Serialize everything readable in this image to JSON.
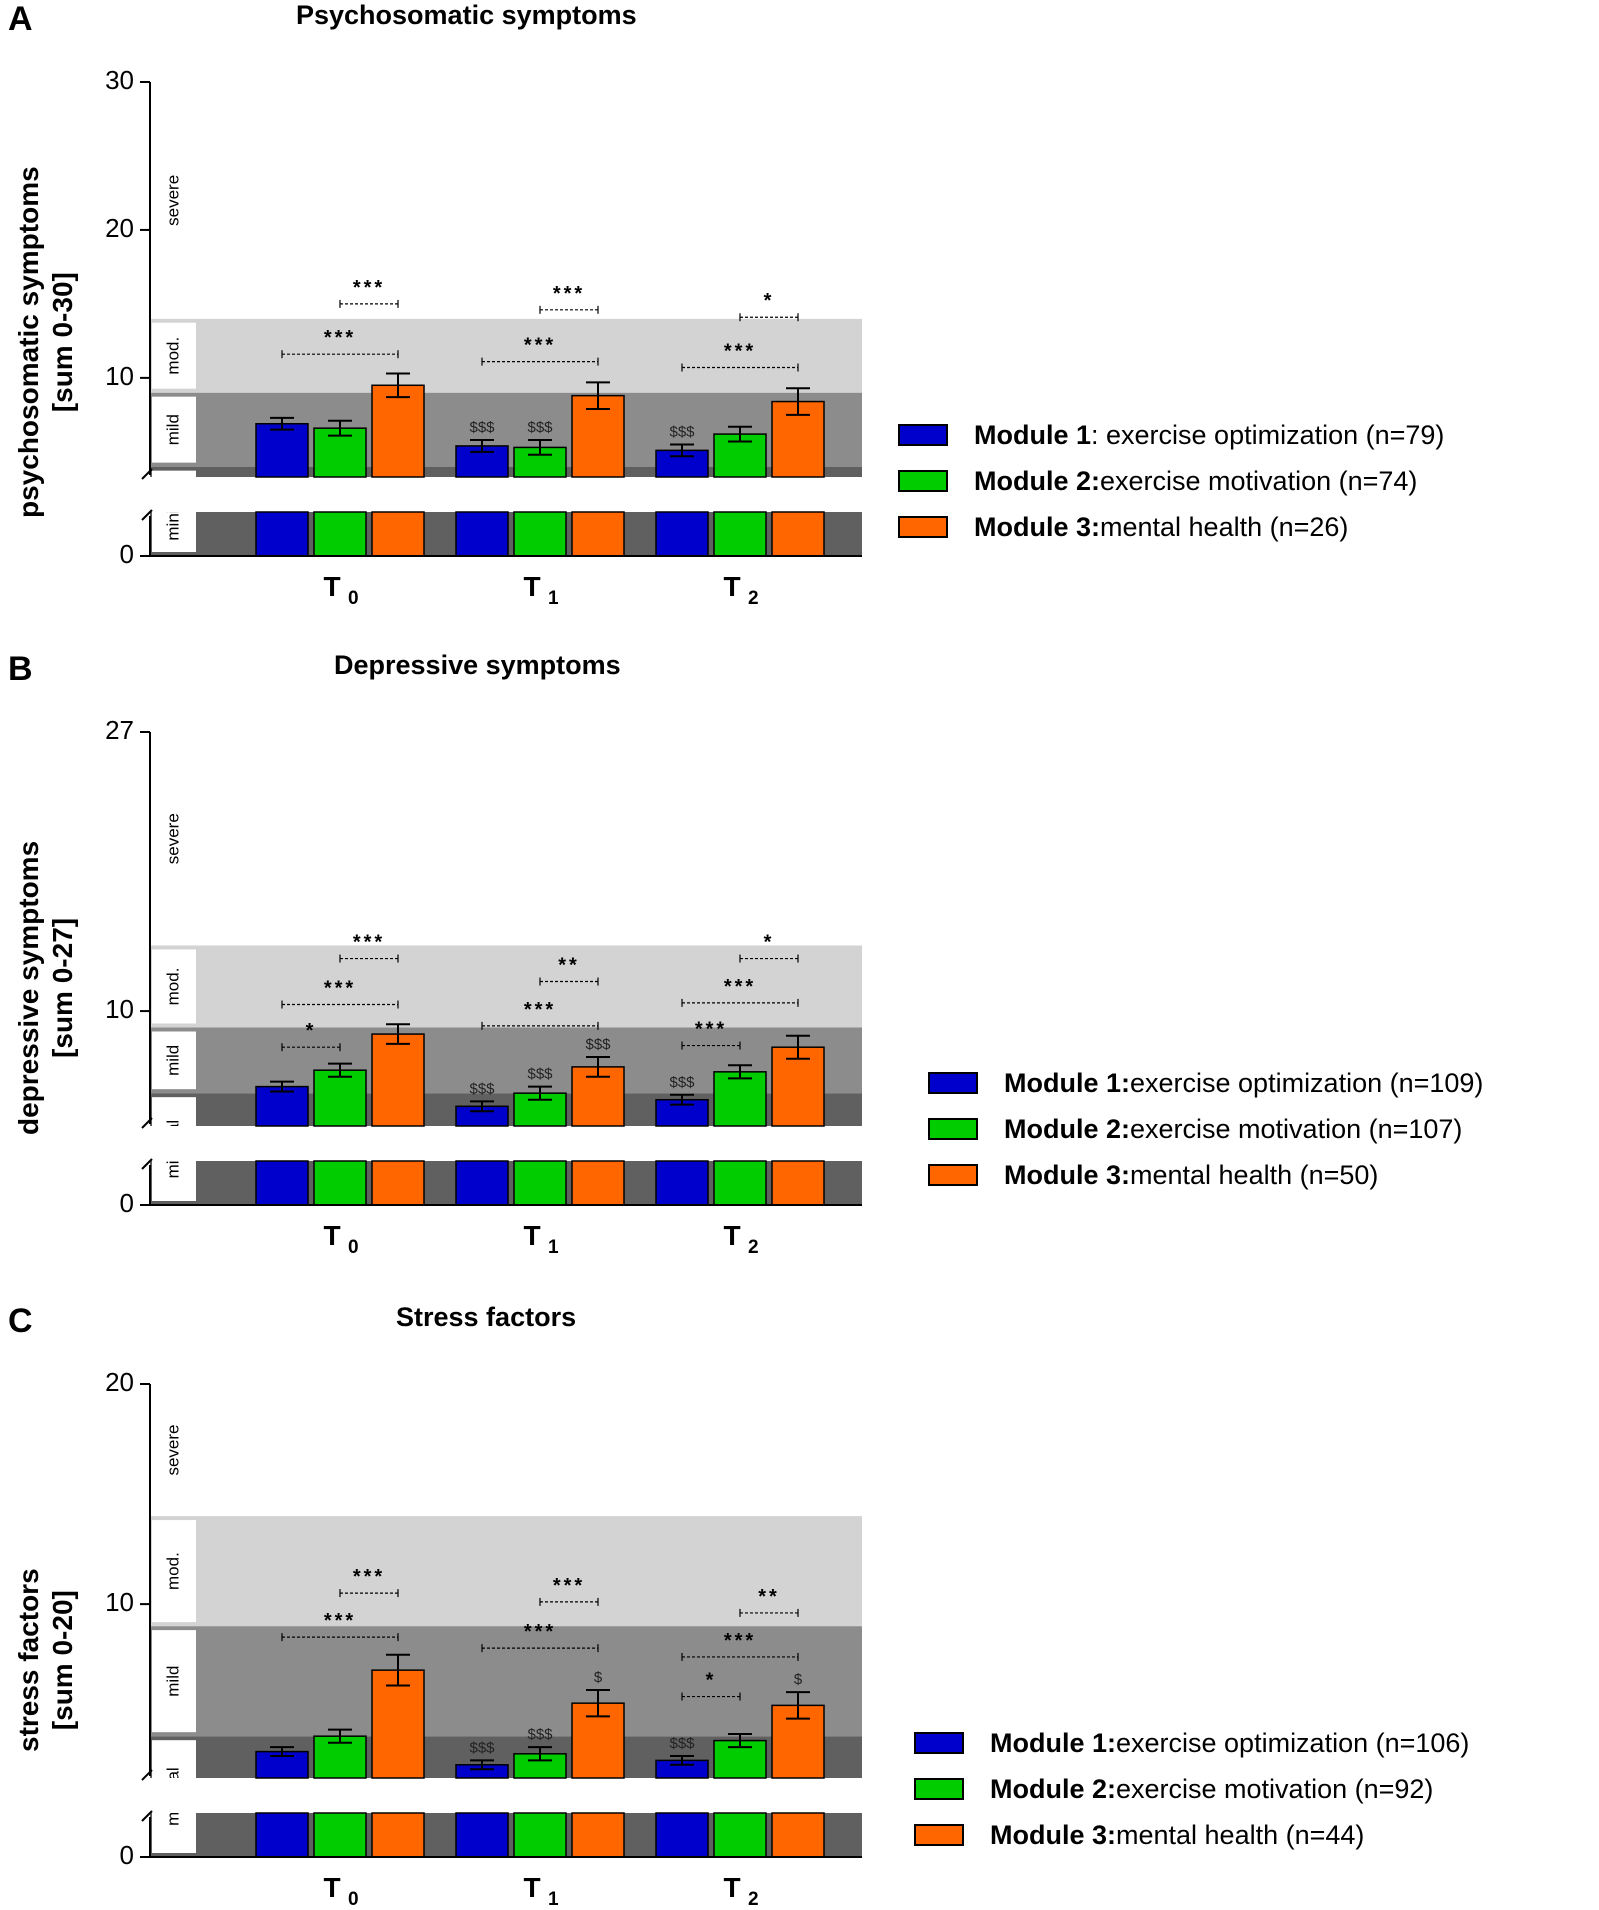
{
  "panels": [
    {
      "letter": "A",
      "title": "Psychosomatic symptoms",
      "ylabel_line1": "psychosomatic symptoms",
      "ylabel_line2": "[sum 0-30]",
      "legend": [
        {
          "bold": "Module 1",
          "rest": ": exercise optimization (n=79)",
          "color": "#0000cc"
        },
        {
          "bold": "Module 2:",
          "rest": " exercise motivation (n=74)",
          "color": "#00cc00"
        },
        {
          "bold": "Module 3:",
          "rest": " mental health (n=26)",
          "color": "#ff6600"
        }
      ]
    },
    {
      "letter": "B",
      "title": "Depressive symptoms",
      "ylabel_line1": "depressive symptoms",
      "ylabel_line2": "[sum 0-27]",
      "legend": [
        {
          "bold": "Module 1:",
          "rest": " exercise optimization (n=109)",
          "color": "#0000cc"
        },
        {
          "bold": "Module 2:",
          "rest": " exercise motivation (n=107)",
          "color": "#00cc00"
        },
        {
          "bold": "Module 3:",
          "rest": " mental health (n=50)",
          "color": "#ff6600"
        }
      ]
    },
    {
      "letter": "C",
      "title": "Stress factors",
      "ylabel_line1": "stress factors",
      "ylabel_line2": "[sum 0-20]",
      "legend": [
        {
          "bold": "Module 1:",
          "rest": " exercise optimization (n=106)",
          "color": "#0000cc"
        },
        {
          "bold": "Module 2:",
          "rest": " exercise motivation (n=92)",
          "color": "#00cc00"
        },
        {
          "bold": "Module 3:",
          "rest": " mental health (n=44)",
          "color": "#ff6600"
        }
      ]
    }
  ],
  "chart_data": [
    {
      "type": "bar",
      "title": "Psychosomatic symptoms",
      "ylabel": "psychosomatic symptoms [sum 0-30]",
      "categories": [
        "T0",
        "T1",
        "T2"
      ],
      "category_labels": [
        {
          "main": "T",
          "sub": "0"
        },
        {
          "main": "T",
          "sub": "1"
        },
        {
          "main": "T",
          "sub": "2"
        }
      ],
      "ylim": [
        0,
        30
      ],
      "yticks": [
        0,
        10,
        20,
        30
      ],
      "axis_break": true,
      "severity_bands": [
        {
          "label": "minimal",
          "from": 0,
          "to": 4,
          "color": "#606060"
        },
        {
          "label": "mild",
          "from": 4,
          "to": 9,
          "color": "#8c8c8c"
        },
        {
          "label": "mod.",
          "from": 9,
          "to": 14,
          "color": "#d3d3d3"
        },
        {
          "label": "severe",
          "from": 14,
          "to": 30,
          "color": "#ffffff"
        }
      ],
      "series": [
        {
          "name": "Module 1",
          "color": "#0000cc",
          "values": [
            6.9,
            5.4,
            5.1
          ],
          "errors": [
            0.4,
            0.4,
            0.4
          ],
          "marks": [
            "",
            "$$$",
            "$$$"
          ]
        },
        {
          "name": "Module 2",
          "color": "#00cc00",
          "values": [
            6.6,
            5.3,
            6.2
          ],
          "errors": [
            0.5,
            0.5,
            0.5
          ],
          "marks": [
            "",
            "$$$",
            ""
          ]
        },
        {
          "name": "Module 3",
          "color": "#ff6600",
          "values": [
            9.5,
            8.8,
            8.4
          ],
          "errors": [
            0.8,
            0.9,
            0.9
          ],
          "marks": [
            "",
            "",
            ""
          ]
        }
      ],
      "comparisons": [
        {
          "cat": 0,
          "from": 1,
          "to": 2,
          "stars": "***",
          "level": 15.0
        },
        {
          "cat": 0,
          "from": 0,
          "to": 2,
          "stars": "***",
          "level": 11.6
        },
        {
          "cat": 1,
          "from": 1,
          "to": 2,
          "stars": "***",
          "level": 14.6
        },
        {
          "cat": 1,
          "from": 0,
          "to": 2,
          "stars": "***",
          "level": 11.1
        },
        {
          "cat": 2,
          "from": 1,
          "to": 2,
          "stars": "*",
          "level": 14.1
        },
        {
          "cat": 2,
          "from": 0,
          "to": 2,
          "stars": "***",
          "level": 10.7
        }
      ]
    },
    {
      "type": "bar",
      "title": "Depressive symptoms",
      "ylabel": "depressive symptoms [sum 0-27]",
      "categories": [
        "T0",
        "T1",
        "T2"
      ],
      "category_labels": [
        {
          "main": "T",
          "sub": "0"
        },
        {
          "main": "T",
          "sub": "1"
        },
        {
          "main": "T",
          "sub": "2"
        }
      ],
      "ylim": [
        0,
        27
      ],
      "yticks": [
        0,
        10,
        27
      ],
      "axis_break": true,
      "severity_bands": [
        {
          "label": "minimal",
          "from": 0,
          "to": 5,
          "color": "#606060"
        },
        {
          "label": "mild",
          "from": 5,
          "to": 9,
          "color": "#8c8c8c"
        },
        {
          "label": "mod.",
          "from": 9,
          "to": 14,
          "color": "#d3d3d3"
        },
        {
          "label": "severe",
          "from": 14,
          "to": 27,
          "color": "#ffffff"
        }
      ],
      "series": [
        {
          "name": "Module 1",
          "color": "#0000cc",
          "values": [
            5.4,
            4.2,
            4.6
          ],
          "errors": [
            0.3,
            0.3,
            0.3
          ],
          "marks": [
            "",
            "$$$",
            "$$$"
          ]
        },
        {
          "name": "Module 2",
          "color": "#00cc00",
          "values": [
            6.4,
            5.0,
            6.3
          ],
          "errors": [
            0.4,
            0.4,
            0.4
          ],
          "marks": [
            "",
            "$$$",
            ""
          ]
        },
        {
          "name": "Module 3",
          "color": "#ff6600",
          "values": [
            8.6,
            6.6,
            7.8
          ],
          "errors": [
            0.6,
            0.6,
            0.7
          ],
          "marks": [
            "",
            "$$$",
            ""
          ]
        }
      ],
      "comparisons": [
        {
          "cat": 0,
          "from": 1,
          "to": 2,
          "stars": "***",
          "level": 13.2
        },
        {
          "cat": 0,
          "from": 0,
          "to": 2,
          "stars": "***",
          "level": 10.4
        },
        {
          "cat": 0,
          "from": 0,
          "to": 1,
          "stars": "*",
          "level": 7.8
        },
        {
          "cat": 1,
          "from": 1,
          "to": 2,
          "stars": "**",
          "level": 11.8
        },
        {
          "cat": 1,
          "from": 0,
          "to": 2,
          "stars": "***",
          "level": 9.1
        },
        {
          "cat": 2,
          "from": 1,
          "to": 2,
          "stars": "*",
          "level": 13.2
        },
        {
          "cat": 2,
          "from": 0,
          "to": 2,
          "stars": "***",
          "level": 10.5
        },
        {
          "cat": 2,
          "from": 0,
          "to": 1,
          "stars": "***",
          "level": 7.9
        }
      ]
    },
    {
      "type": "bar",
      "title": "Stress factors",
      "ylabel": "stress factors [sum 0-20]",
      "categories": [
        "T0",
        "T1",
        "T2"
      ],
      "category_labels": [
        {
          "main": "T",
          "sub": "0"
        },
        {
          "main": "T",
          "sub": "1"
        },
        {
          "main": "T",
          "sub": "2"
        }
      ],
      "ylim": [
        0,
        20
      ],
      "yticks": [
        0,
        10,
        20
      ],
      "axis_break": true,
      "severity_bands": [
        {
          "label": "minimal",
          "from": 0,
          "to": 4,
          "color": "#606060"
        },
        {
          "label": "mild",
          "from": 4,
          "to": 9,
          "color": "#8c8c8c"
        },
        {
          "label": "mod.",
          "from": 9,
          "to": 14,
          "color": "#d3d3d3"
        },
        {
          "label": "severe",
          "from": 14,
          "to": 20,
          "color": "#ffffff"
        }
      ],
      "series": [
        {
          "name": "Module 1",
          "color": "#0000cc",
          "values": [
            3.3,
            2.7,
            2.9
          ],
          "errors": [
            0.2,
            0.2,
            0.2
          ],
          "marks": [
            "",
            "$$$",
            "$$$"
          ]
        },
        {
          "name": "Module 2",
          "color": "#00cc00",
          "values": [
            4.0,
            3.2,
            3.8
          ],
          "errors": [
            0.3,
            0.3,
            0.3
          ],
          "marks": [
            "",
            "$$$",
            ""
          ]
        },
        {
          "name": "Module 3",
          "color": "#ff6600",
          "values": [
            7.0,
            5.5,
            5.4
          ],
          "errors": [
            0.7,
            0.6,
            0.6
          ],
          "marks": [
            "",
            "$",
            "$"
          ]
        }
      ],
      "comparisons": [
        {
          "cat": 0,
          "from": 1,
          "to": 2,
          "stars": "***",
          "level": 10.5
        },
        {
          "cat": 0,
          "from": 0,
          "to": 2,
          "stars": "***",
          "level": 8.5
        },
        {
          "cat": 1,
          "from": 1,
          "to": 2,
          "stars": "***",
          "level": 10.1
        },
        {
          "cat": 1,
          "from": 0,
          "to": 2,
          "stars": "***",
          "level": 8.0
        },
        {
          "cat": 2,
          "from": 1,
          "to": 2,
          "stars": "**",
          "level": 9.6
        },
        {
          "cat": 2,
          "from": 0,
          "to": 2,
          "stars": "***",
          "level": 7.6
        },
        {
          "cat": 2,
          "from": 0,
          "to": 1,
          "stars": "*",
          "level": 5.8
        }
      ]
    }
  ]
}
